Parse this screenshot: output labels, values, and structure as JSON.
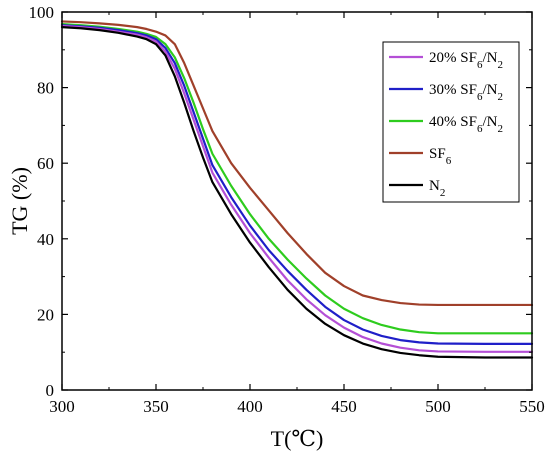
{
  "chart_data": {
    "type": "line",
    "title": "",
    "xlabel": "T(℃)",
    "ylabel": "TG (%)",
    "xlim": [
      300,
      550
    ],
    "ylim": [
      0,
      100
    ],
    "xticks": [
      300,
      350,
      400,
      450,
      500,
      550
    ],
    "yticks": [
      0,
      20,
      40,
      60,
      80,
      100
    ],
    "grid": false,
    "legend_position": "top-right",
    "series": [
      {
        "name": "20% SF6/N2",
        "label_main": "20% SF",
        "label_sub": "6",
        "label_tail": "/N",
        "label_sub2": "2",
        "color": "#b44fd6",
        "x": [
          300,
          310,
          320,
          330,
          340,
          345,
          350,
          355,
          360,
          365,
          370,
          375,
          380,
          390,
          400,
          410,
          420,
          430,
          440,
          450,
          460,
          470,
          480,
          490,
          500,
          525,
          550
        ],
        "y": [
          96.3,
          96.0,
          95.5,
          94.8,
          94.0,
          93.3,
          92.2,
          89.5,
          85.0,
          78.5,
          71.5,
          64.5,
          57.5,
          49.0,
          41.5,
          35.0,
          29.0,
          24.0,
          19.8,
          16.5,
          14.0,
          12.3,
          11.2,
          10.5,
          10.2,
          10.1,
          10.1
        ]
      },
      {
        "name": "30% SF6/N2",
        "label_main": "30% SF",
        "label_sub": "6",
        "label_tail": "/N",
        "label_sub2": "2",
        "color": "#1f1fc8",
        "x": [
          300,
          310,
          320,
          330,
          340,
          345,
          350,
          355,
          360,
          365,
          370,
          375,
          380,
          390,
          400,
          410,
          420,
          430,
          440,
          450,
          460,
          470,
          480,
          490,
          500,
          525,
          550
        ],
        "y": [
          96.5,
          96.2,
          95.8,
          95.2,
          94.4,
          93.8,
          92.8,
          90.5,
          86.5,
          80.5,
          73.5,
          66.5,
          59.5,
          51.0,
          43.5,
          37.0,
          31.5,
          26.5,
          22.0,
          18.5,
          16.0,
          14.3,
          13.2,
          12.6,
          12.3,
          12.2,
          12.2
        ]
      },
      {
        "name": "40% SF6/N2",
        "label_main": "40% SF",
        "label_sub": "6",
        "label_tail": "/N",
        "label_sub2": "2",
        "color": "#2ecc1e",
        "x": [
          300,
          310,
          320,
          330,
          340,
          345,
          350,
          355,
          360,
          365,
          370,
          375,
          380,
          390,
          400,
          410,
          420,
          430,
          440,
          450,
          460,
          470,
          480,
          490,
          500,
          525,
          550
        ],
        "y": [
          96.8,
          96.5,
          96.1,
          95.5,
          94.8,
          94.2,
          93.4,
          91.5,
          88.0,
          82.5,
          76.0,
          69.0,
          62.5,
          54.0,
          46.5,
          40.0,
          34.5,
          29.5,
          25.0,
          21.5,
          19.0,
          17.2,
          16.0,
          15.3,
          15.0,
          15.0,
          15.0
        ]
      },
      {
        "name": "SF6",
        "label_main": "SF",
        "label_sub": "6",
        "label_tail": "",
        "label_sub2": "",
        "color": "#a0402a",
        "x": [
          300,
          310,
          320,
          330,
          340,
          345,
          350,
          355,
          360,
          365,
          370,
          375,
          380,
          390,
          400,
          410,
          420,
          430,
          440,
          450,
          460,
          470,
          480,
          490,
          500,
          525,
          550
        ],
        "y": [
          97.5,
          97.3,
          97.0,
          96.6,
          96.0,
          95.5,
          94.8,
          93.8,
          91.5,
          86.5,
          80.5,
          74.5,
          68.5,
          60.0,
          53.5,
          47.5,
          41.5,
          36.0,
          31.0,
          27.5,
          25.0,
          23.8,
          23.0,
          22.6,
          22.5,
          22.5,
          22.5
        ]
      },
      {
        "name": "N2",
        "label_main": "N",
        "label_sub": "2",
        "label_tail": "",
        "label_sub2": "",
        "color": "#000000",
        "x": [
          300,
          310,
          320,
          330,
          340,
          345,
          350,
          355,
          360,
          365,
          370,
          375,
          380,
          390,
          400,
          410,
          420,
          430,
          440,
          450,
          460,
          470,
          480,
          490,
          500,
          525,
          550
        ],
        "y": [
          96.0,
          95.7,
          95.2,
          94.5,
          93.5,
          92.8,
          91.5,
          88.5,
          83.0,
          76.0,
          68.5,
          61.5,
          55.0,
          46.5,
          39.0,
          32.5,
          26.5,
          21.5,
          17.5,
          14.5,
          12.3,
          10.8,
          9.8,
          9.2,
          8.8,
          8.6,
          8.6
        ]
      }
    ]
  }
}
